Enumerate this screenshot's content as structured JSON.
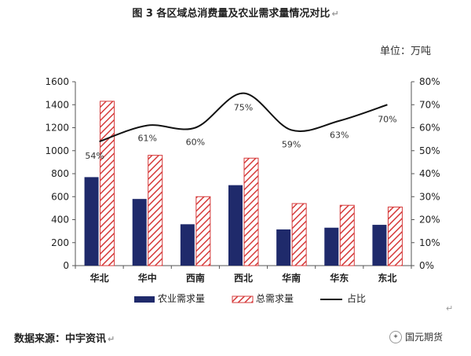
{
  "title": "图 3  各区域总消费量及农业需求量情况对比",
  "title_mark": "↵",
  "unit_label": "单位：万吨",
  "source_label": "数据来源：中宇资讯",
  "source_mark": "↵",
  "brand": "国元期货",
  "stray_mark": "↵",
  "colors": {
    "agri_bar": "#1f2a6b",
    "total_bar_stroke": "#d63a3a",
    "ratio_line": "#111111",
    "axis": "#555555"
  },
  "chart_data": {
    "type": "bar",
    "categories": [
      "华北",
      "华中",
      "西南",
      "西北",
      "华南",
      "华东",
      "东北"
    ],
    "series": [
      {
        "name": "农业需求量",
        "values": [
          770,
          580,
          360,
          700,
          315,
          330,
          355
        ],
        "axis": "left"
      },
      {
        "name": "总需求量",
        "values": [
          1430,
          960,
          600,
          935,
          540,
          525,
          510
        ],
        "axis": "left"
      },
      {
        "name": "占比",
        "type": "line",
        "values": [
          54,
          61,
          60,
          75,
          59,
          63,
          70
        ],
        "axis": "right",
        "labels": [
          "54%",
          "61%",
          "60%",
          "75%",
          "59%",
          "63%",
          "70%"
        ]
      }
    ],
    "ylim": [
      0,
      1600
    ],
    "yticks": [
      "0",
      "200",
      "400",
      "600",
      "800",
      "1000",
      "1200",
      "1400",
      "1600"
    ],
    "y2lim": [
      0,
      80
    ],
    "y2ticks": [
      "0%",
      "10%",
      "20%",
      "30%",
      "40%",
      "50%",
      "60%",
      "70%",
      "80%"
    ],
    "legend_position": "bottom"
  }
}
